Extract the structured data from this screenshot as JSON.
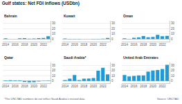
{
  "title": "Gulf states: Net FDI inflows (USDbn)",
  "note": "*The UNCTAD numbers do not reflect Saudi Arabia's revised data",
  "source": "Source: UNCTAD",
  "chart_data": [
    {
      "type": "bar",
      "title": "Bahrain",
      "x": [
        2014,
        2015,
        2016,
        2017,
        2018,
        2019,
        2020,
        2021,
        2022,
        2023
      ],
      "values": [
        1.5,
        0.1,
        0.2,
        1.4,
        1.6,
        0.9,
        1.0,
        1.8,
        2.1,
        5.5
      ],
      "color": "#1f9ad6",
      "xlim": [
        2013.4,
        2023.6
      ],
      "xticks": [
        2014,
        2016,
        2018,
        2020,
        2022
      ],
      "ylim": [
        -5,
        35
      ],
      "yticks": [
        0,
        10,
        20,
        30
      ],
      "grid": true
    },
    {
      "type": "bar",
      "title": "Kuwait",
      "x": [
        2014,
        2015,
        2016,
        2017,
        2018,
        2019,
        2020,
        2021,
        2022,
        2023
      ],
      "values": [
        1.0,
        0.3,
        0.4,
        0.3,
        0.2,
        0.1,
        -0.3,
        0.5,
        0.8,
        2.1
      ],
      "color": "#1f9ad6",
      "xlim": [
        2013.4,
        2023.6
      ],
      "xticks": [
        2014,
        2016,
        2018,
        2020,
        2022
      ],
      "ylim": [
        -5,
        35
      ],
      "yticks": [
        0,
        10,
        20,
        30
      ],
      "grid": true
    },
    {
      "type": "bar",
      "title": "Oman",
      "x": [
        2014,
        2015,
        2016,
        2017,
        2018,
        2019,
        2020,
        2021,
        2022,
        2023
      ],
      "values": [
        1.3,
        -0.3,
        2.3,
        2.9,
        5.6,
        3.4,
        4.1,
        8.0,
        5.5,
        5.9
      ],
      "color": "#1f9ad6",
      "xlim": [
        2013.4,
        2023.6
      ],
      "xticks": [
        2014,
        2016,
        2018,
        2020,
        2022
      ],
      "ylim": [
        -5,
        35
      ],
      "yticks": [
        0,
        10,
        20,
        30
      ],
      "grid": true
    },
    {
      "type": "bar",
      "title": "Qatar",
      "x": [
        2014,
        2015,
        2016,
        2017,
        2018,
        2019,
        2020,
        2021,
        2022,
        2023
      ],
      "values": [
        1.0,
        1.1,
        0.8,
        1.0,
        -2.2,
        -2.8,
        -2.4,
        -1.1,
        0.1,
        0.5
      ],
      "color": "#1f9ad6",
      "xlim": [
        2013.4,
        2023.6
      ],
      "xticks": [
        2014,
        2016,
        2018,
        2020,
        2022
      ],
      "ylim": [
        -5,
        35
      ],
      "yticks": [
        0,
        10,
        20,
        30
      ],
      "grid": true
    },
    {
      "type": "bar",
      "title": "Saudi Arabia*",
      "x": [
        2014,
        2015,
        2016,
        2017,
        2018,
        2019,
        2020,
        2021,
        2022,
        2023
      ],
      "values": [
        1.5,
        4.0,
        11.0,
        1.4,
        4.2,
        4.6,
        5.4,
        19.3,
        25.0,
        12.3
      ],
      "color": "#1f9ad6",
      "xlim": [
        2013.4,
        2023.6
      ],
      "xticks": [
        2014,
        2016,
        2018,
        2020,
        2022
      ],
      "ylim": [
        -5,
        35
      ],
      "yticks": [
        0,
        10,
        20,
        30
      ],
      "grid": true
    },
    {
      "type": "bar",
      "title": "United Arab Emirates",
      "x": [
        2014,
        2015,
        2016,
        2017,
        2018,
        2019,
        2020,
        2021,
        2022,
        2023
      ],
      "values": [
        11.1,
        8.6,
        9.6,
        10.4,
        10.4,
        17.9,
        19.9,
        20.7,
        22.7,
        30.7
      ],
      "color": "#1f9ad6",
      "xlim": [
        2013.4,
        2023.6
      ],
      "xticks": [
        2014,
        2016,
        2018,
        2020,
        2022
      ],
      "ylim": [
        -5,
        35
      ],
      "yticks": [
        0,
        10,
        20,
        30
      ],
      "grid": true
    }
  ]
}
